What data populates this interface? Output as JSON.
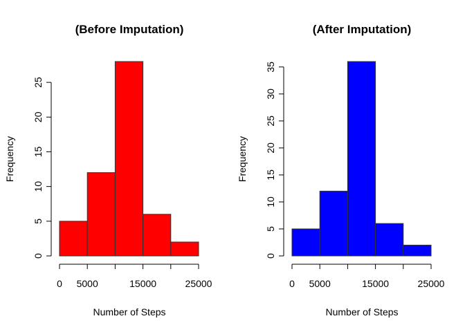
{
  "chart_data": [
    {
      "type": "bar",
      "title": "(Before Imputation)",
      "xlabel": "Number of Steps",
      "ylabel": "Frequency",
      "bin_edges": [
        0,
        5000,
        10000,
        15000,
        20000,
        25000
      ],
      "values": [
        5,
        12,
        28,
        6,
        2
      ],
      "color": "#ff0000",
      "xlim": [
        0,
        25000
      ],
      "ylim": [
        0,
        28
      ],
      "x_ticks": [
        0,
        5000,
        10000,
        15000,
        20000,
        25000
      ],
      "x_tick_labels": [
        "0",
        "5000",
        "",
        "15000",
        "",
        "25000"
      ],
      "y_ticks": [
        0,
        5,
        10,
        15,
        20,
        25
      ],
      "y_tick_labels": [
        "0",
        "5",
        "10",
        "15",
        "20",
        "25"
      ],
      "grid": false,
      "legend": "none"
    },
    {
      "type": "bar",
      "title": "(After Imputation)",
      "xlabel": "Number of Steps",
      "ylabel": "Frequency",
      "bin_edges": [
        0,
        5000,
        10000,
        15000,
        20000,
        25000
      ],
      "values": [
        5,
        12,
        36,
        6,
        2
      ],
      "color": "#0000ff",
      "xlim": [
        0,
        25000
      ],
      "ylim": [
        0,
        36
      ],
      "x_ticks": [
        0,
        5000,
        10000,
        15000,
        20000,
        25000
      ],
      "x_tick_labels": [
        "0",
        "5000",
        "",
        "15000",
        "",
        "25000"
      ],
      "y_ticks": [
        0,
        5,
        10,
        15,
        20,
        25,
        30,
        35
      ],
      "y_tick_labels": [
        "0",
        "5",
        "10",
        "15",
        "20",
        "25",
        "30",
        "35"
      ],
      "grid": false,
      "legend": "none"
    }
  ]
}
